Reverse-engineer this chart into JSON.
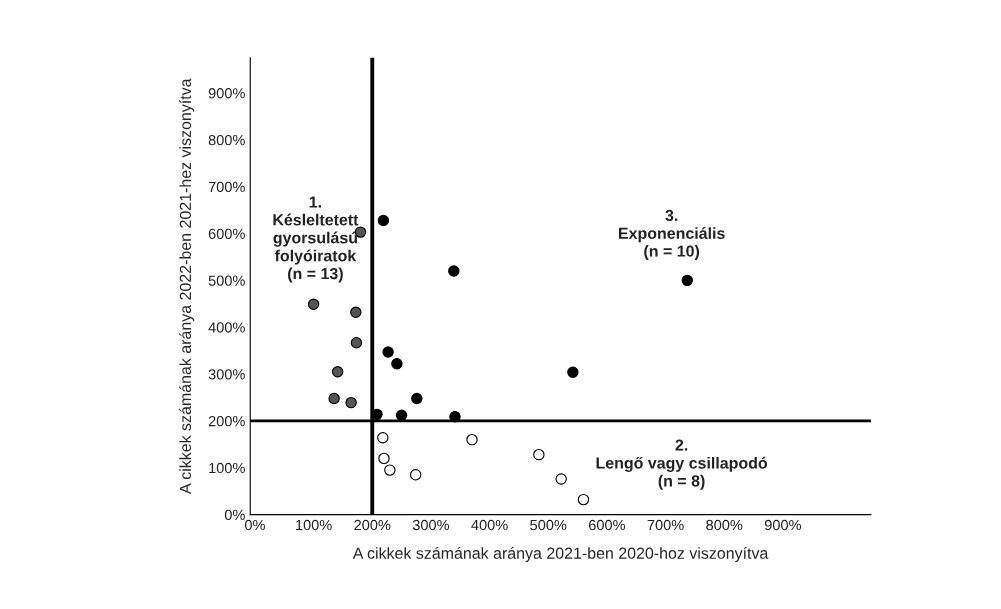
{
  "chart_data": {
    "type": "scatter",
    "xlabel": "A cikkek számának aránya 2021-ben 2020-hoz viszonyítva",
    "ylabel": "A cikkek számának aránya 2022-ben 2021-hez viszonyítva",
    "xlim": [
      -8,
      1050
    ],
    "ylim": [
      0,
      975
    ],
    "xticks": [
      {
        "value": 0,
        "label": "0%"
      },
      {
        "value": 100,
        "label": "100%"
      },
      {
        "value": 200,
        "label": "200%"
      },
      {
        "value": 300,
        "label": "300%"
      },
      {
        "value": 400,
        "label": "400%"
      },
      {
        "value": 500,
        "label": "500%"
      },
      {
        "value": 600,
        "label": "600%"
      },
      {
        "value": 700,
        "label": "700%"
      },
      {
        "value": 800,
        "label": "800%"
      },
      {
        "value": 900,
        "label": "900%"
      }
    ],
    "yticks": [
      {
        "value": 0,
        "label": "0%"
      },
      {
        "value": 100,
        "label": "100%"
      },
      {
        "value": 200,
        "label": "200%"
      },
      {
        "value": 300,
        "label": "300%"
      },
      {
        "value": 400,
        "label": "400%"
      },
      {
        "value": 500,
        "label": "500%"
      },
      {
        "value": 600,
        "label": "600%"
      },
      {
        "value": 700,
        "label": "700%"
      },
      {
        "value": 800,
        "label": "800%"
      },
      {
        "value": 900,
        "label": "900%"
      }
    ],
    "grid": false,
    "legend": false,
    "marker": "circle",
    "series": [
      {
        "color": "#555555",
        "x": [
          100,
          172,
          173,
          141,
          135,
          164,
          180
        ],
        "values": [
          449,
          432,
          367,
          305,
          248,
          239,
          603
        ]
      },
      {
        "color": "#000000",
        "x": [
          219,
          339,
          227,
          242,
          276,
          208,
          250,
          341,
          737,
          542
        ],
        "values": [
          628,
          520,
          347,
          322,
          248,
          214,
          212,
          209,
          500,
          304
        ]
      },
      {
        "color": "#ffffff",
        "x": [
          218,
          370,
          220,
          230,
          274,
          484,
          522,
          560
        ],
        "values": [
          164,
          160,
          120,
          95,
          85,
          128,
          76,
          32
        ]
      }
    ],
    "ref_lines": [
      {
        "axis": "x",
        "value": 200,
        "color": "#000000"
      },
      {
        "axis": "y",
        "value": 200,
        "color": "#000000"
      }
    ],
    "annotations": [
      "1.\nKésleltetett\ngyorsulású\nfolyóiratok\n(n = 13)",
      "3.\nExponenciális\n(n = 10)",
      "2.\nLengő vagy csillapodó\n(n = 8)"
    ]
  }
}
